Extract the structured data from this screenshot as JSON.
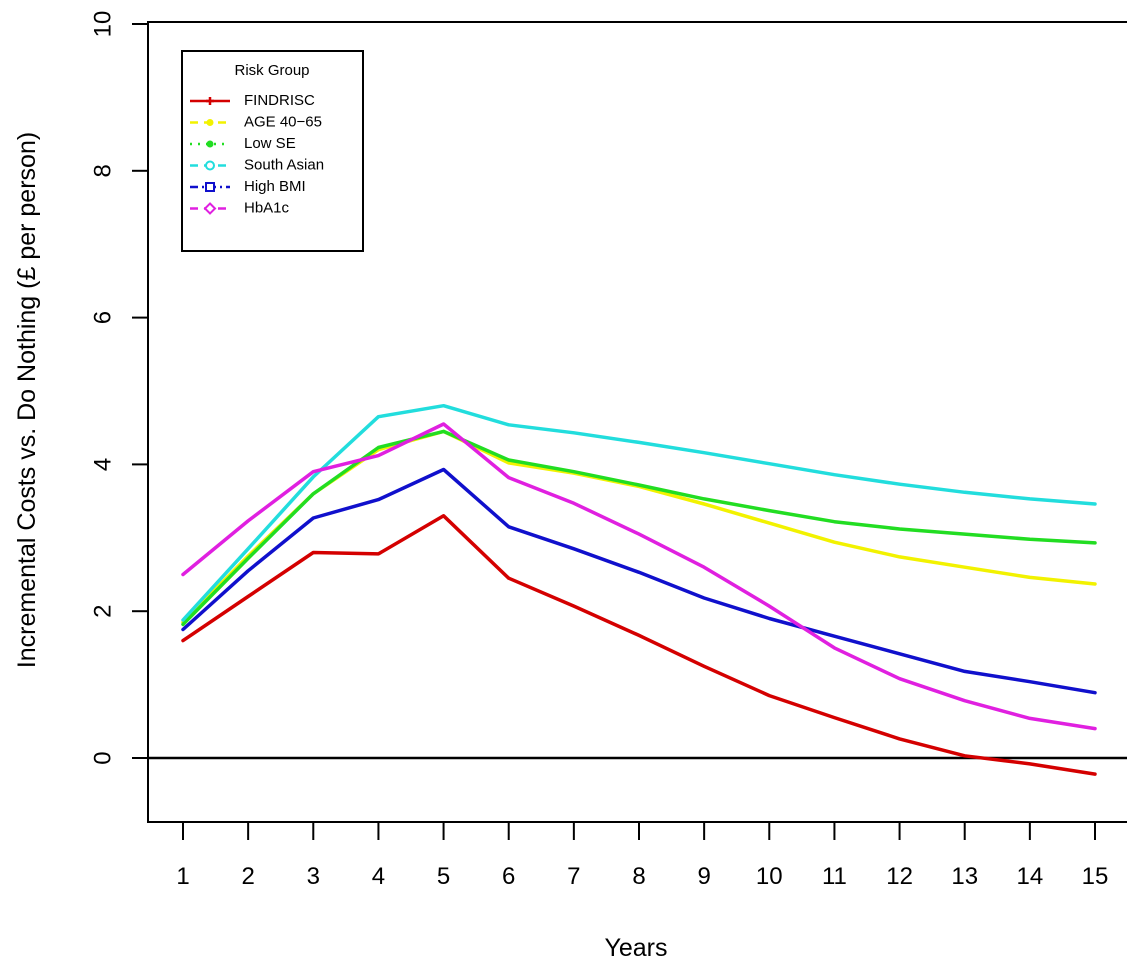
{
  "chart_data": {
    "type": "line",
    "title": "",
    "xlabel": "Years",
    "ylabel": "Incremental Costs vs. Do Nothing (£ per person)",
    "x": [
      1,
      2,
      3,
      4,
      5,
      6,
      7,
      8,
      9,
      10,
      11,
      12,
      13,
      14,
      15
    ],
    "x_ticks": [
      "1",
      "2",
      "3",
      "4",
      "5",
      "6",
      "7",
      "8",
      "9",
      "10",
      "11",
      "12",
      "13",
      "14",
      "15"
    ],
    "ylim": [
      -0.9,
      10
    ],
    "y_ticks": [
      "0",
      "2",
      "4",
      "6",
      "8",
      "10"
    ],
    "grid": false,
    "reference_line_y": 0,
    "legend": {
      "title": "Risk Group",
      "placement": "top-left"
    },
    "series": [
      {
        "name": "FINDRISC",
        "color": "#d40000",
        "values": [
          1.6,
          2.2,
          2.8,
          2.78,
          3.3,
          2.45,
          2.07,
          1.67,
          1.25,
          0.85,
          0.55,
          0.26,
          0.03,
          -0.08,
          -0.22
        ]
      },
      {
        "name": "AGE 40−65",
        "color": "#f2f200",
        "values": [
          1.85,
          2.75,
          3.6,
          4.2,
          4.45,
          4.02,
          3.88,
          3.7,
          3.46,
          3.2,
          2.94,
          2.74,
          2.6,
          2.46,
          2.37
        ]
      },
      {
        "name": "Low SE",
        "color": "#22dd22",
        "values": [
          1.82,
          2.72,
          3.6,
          4.23,
          4.45,
          4.06,
          3.9,
          3.72,
          3.53,
          3.37,
          3.22,
          3.12,
          3.05,
          2.98,
          2.93
        ]
      },
      {
        "name": "South Asian",
        "color": "#22dddd",
        "values": [
          1.88,
          2.85,
          3.83,
          4.65,
          4.8,
          4.54,
          4.43,
          4.3,
          4.16,
          4.01,
          3.86,
          3.73,
          3.62,
          3.53,
          3.46
        ]
      },
      {
        "name": "High BMI",
        "color": "#1010cc",
        "values": [
          1.75,
          2.55,
          3.27,
          3.52,
          3.93,
          3.15,
          2.85,
          2.53,
          2.18,
          1.9,
          1.66,
          1.42,
          1.18,
          1.04,
          0.89
        ]
      },
      {
        "name": "HbA1c",
        "color": "#e020e0",
        "values": [
          2.5,
          3.23,
          3.9,
          4.12,
          4.55,
          3.82,
          3.47,
          3.05,
          2.6,
          2.07,
          1.5,
          1.08,
          0.78,
          0.54,
          0.4
        ]
      }
    ]
  }
}
